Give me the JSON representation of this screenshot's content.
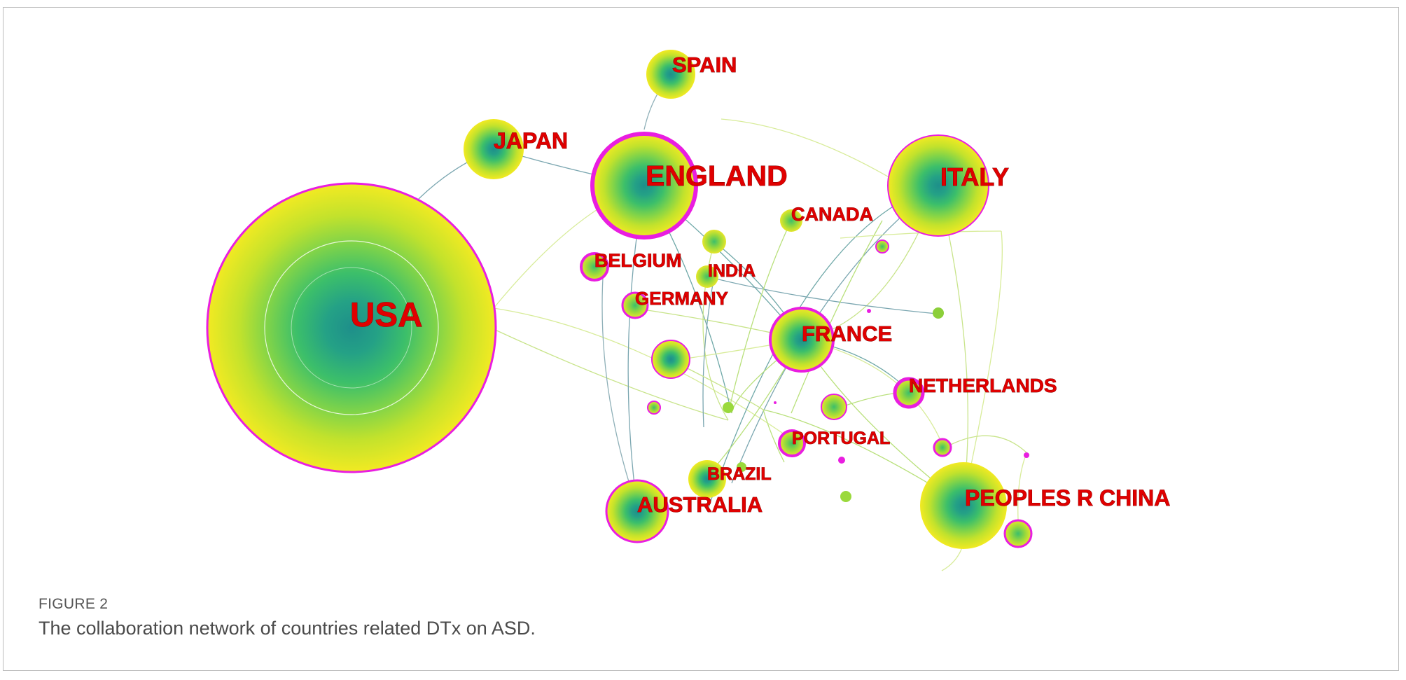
{
  "figure": {
    "number": "FIGURE 2",
    "caption": "The collaboration network of countries related DTx on ASD."
  },
  "network": {
    "nodes": [
      {
        "id": "usa",
        "label": "USA",
        "color": "#e91ee0"
      },
      {
        "id": "spain",
        "label": "SPAIN"
      },
      {
        "id": "japan",
        "label": "JAPAN"
      },
      {
        "id": "england",
        "label": "ENGLAND",
        "color": "#e91ee0"
      },
      {
        "id": "italy",
        "label": "ITALY",
        "color": "#e91ee0"
      },
      {
        "id": "canada",
        "label": "CANADA"
      },
      {
        "id": "belgium",
        "label": "BELGIUM",
        "color": "#e91ee0"
      },
      {
        "id": "india",
        "label": "INDIA"
      },
      {
        "id": "germany",
        "label": "GERMANY",
        "color": "#e91ee0"
      },
      {
        "id": "france",
        "label": "FRANCE",
        "color": "#e91ee0"
      },
      {
        "id": "netherlands",
        "label": "NETHERLANDS",
        "color": "#e91ee0"
      },
      {
        "id": "portugal",
        "label": "PORTUGAL",
        "color": "#e91ee0"
      },
      {
        "id": "brazil",
        "label": "BRAZIL"
      },
      {
        "id": "australia",
        "label": "AUSTRALIA",
        "color": "#e91ee0"
      },
      {
        "id": "china",
        "label": "PEOPLES R CHINA"
      }
    ],
    "colors": {
      "centrality_ring": "#e91ee0",
      "label": "#e00000",
      "edge_green": "#b8e07a",
      "edge_teal": "#5f9ea0"
    }
  }
}
